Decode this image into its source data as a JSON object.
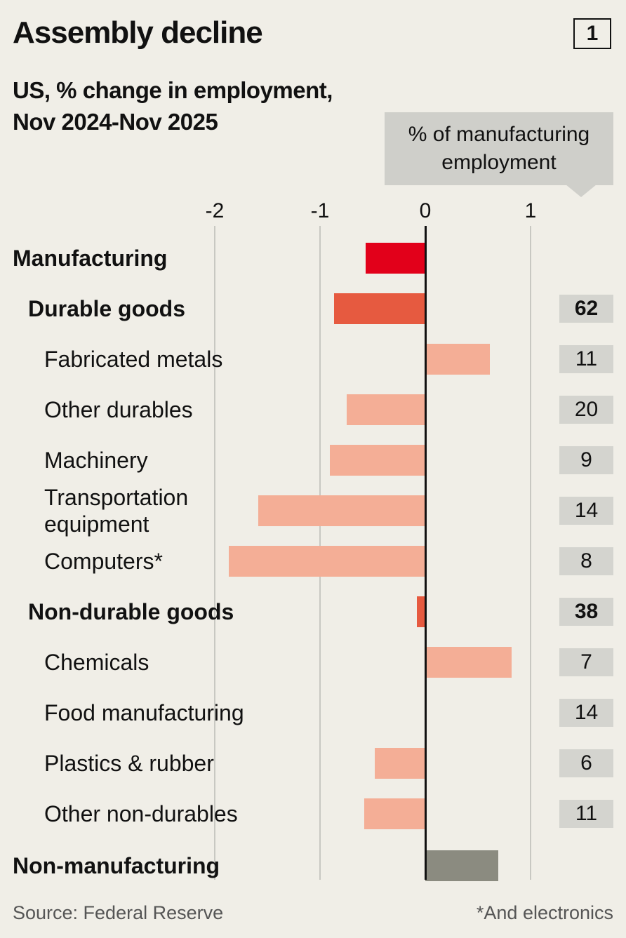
{
  "title": "Assembly decline",
  "chart_number": "1",
  "subtitle_line1": "US, % change in employment,",
  "subtitle_line2": "Nov 2024-Nov 2025",
  "share_header": [
    "% of manufacturing",
    "employment"
  ],
  "source": "Source: Federal Reserve",
  "footnote": "*And electronics",
  "colors": {
    "level0": "#e2001a",
    "level1": "#e65a40",
    "level2": "#f4ae96",
    "nonmanufacturing": "#8b8b80",
    "background": "#f0eee7"
  },
  "chart_data": {
    "type": "bar",
    "orientation": "horizontal",
    "title": "Assembly decline",
    "subtitle": "US, % change in employment, Nov 2024-Nov 2025",
    "xlim": [
      -2.0,
      1.5
    ],
    "xticks": [
      -2,
      -1,
      0,
      1
    ],
    "xtick_labels": [
      "-2",
      "-1",
      "0",
      "1"
    ],
    "grid": true,
    "rows": [
      {
        "label": "Manufacturing",
        "level": 0,
        "value": -0.57,
        "share": null
      },
      {
        "label": "Durable goods",
        "level": 1,
        "value": -0.87,
        "share": "62"
      },
      {
        "label": "Fabricated metals",
        "level": 2,
        "value": 0.61,
        "share": "11"
      },
      {
        "label": "Other durables",
        "level": 2,
        "value": -0.75,
        "share": "20"
      },
      {
        "label": "Machinery",
        "level": 2,
        "value": -0.91,
        "share": "9"
      },
      {
        "label": "Transportation\nequipment",
        "level": 2,
        "value": -1.59,
        "share": "14"
      },
      {
        "label": "Computers*",
        "level": 2,
        "value": -1.87,
        "share": "8"
      },
      {
        "label": "Non-durable goods",
        "level": 1,
        "value": -0.08,
        "share": "38"
      },
      {
        "label": "Chemicals",
        "level": 2,
        "value": 0.82,
        "share": "7"
      },
      {
        "label": "Food manufacturing",
        "level": 2,
        "value": 0.01,
        "share": "14"
      },
      {
        "label": "Plastics & rubber",
        "level": 2,
        "value": -0.48,
        "share": "6"
      },
      {
        "label": "Other non-durables",
        "level": 2,
        "value": -0.58,
        "share": "11"
      },
      {
        "label": "Non-manufacturing",
        "level": 0,
        "value": 0.69,
        "share": null,
        "kind": "nonmanufacturing"
      }
    ]
  }
}
